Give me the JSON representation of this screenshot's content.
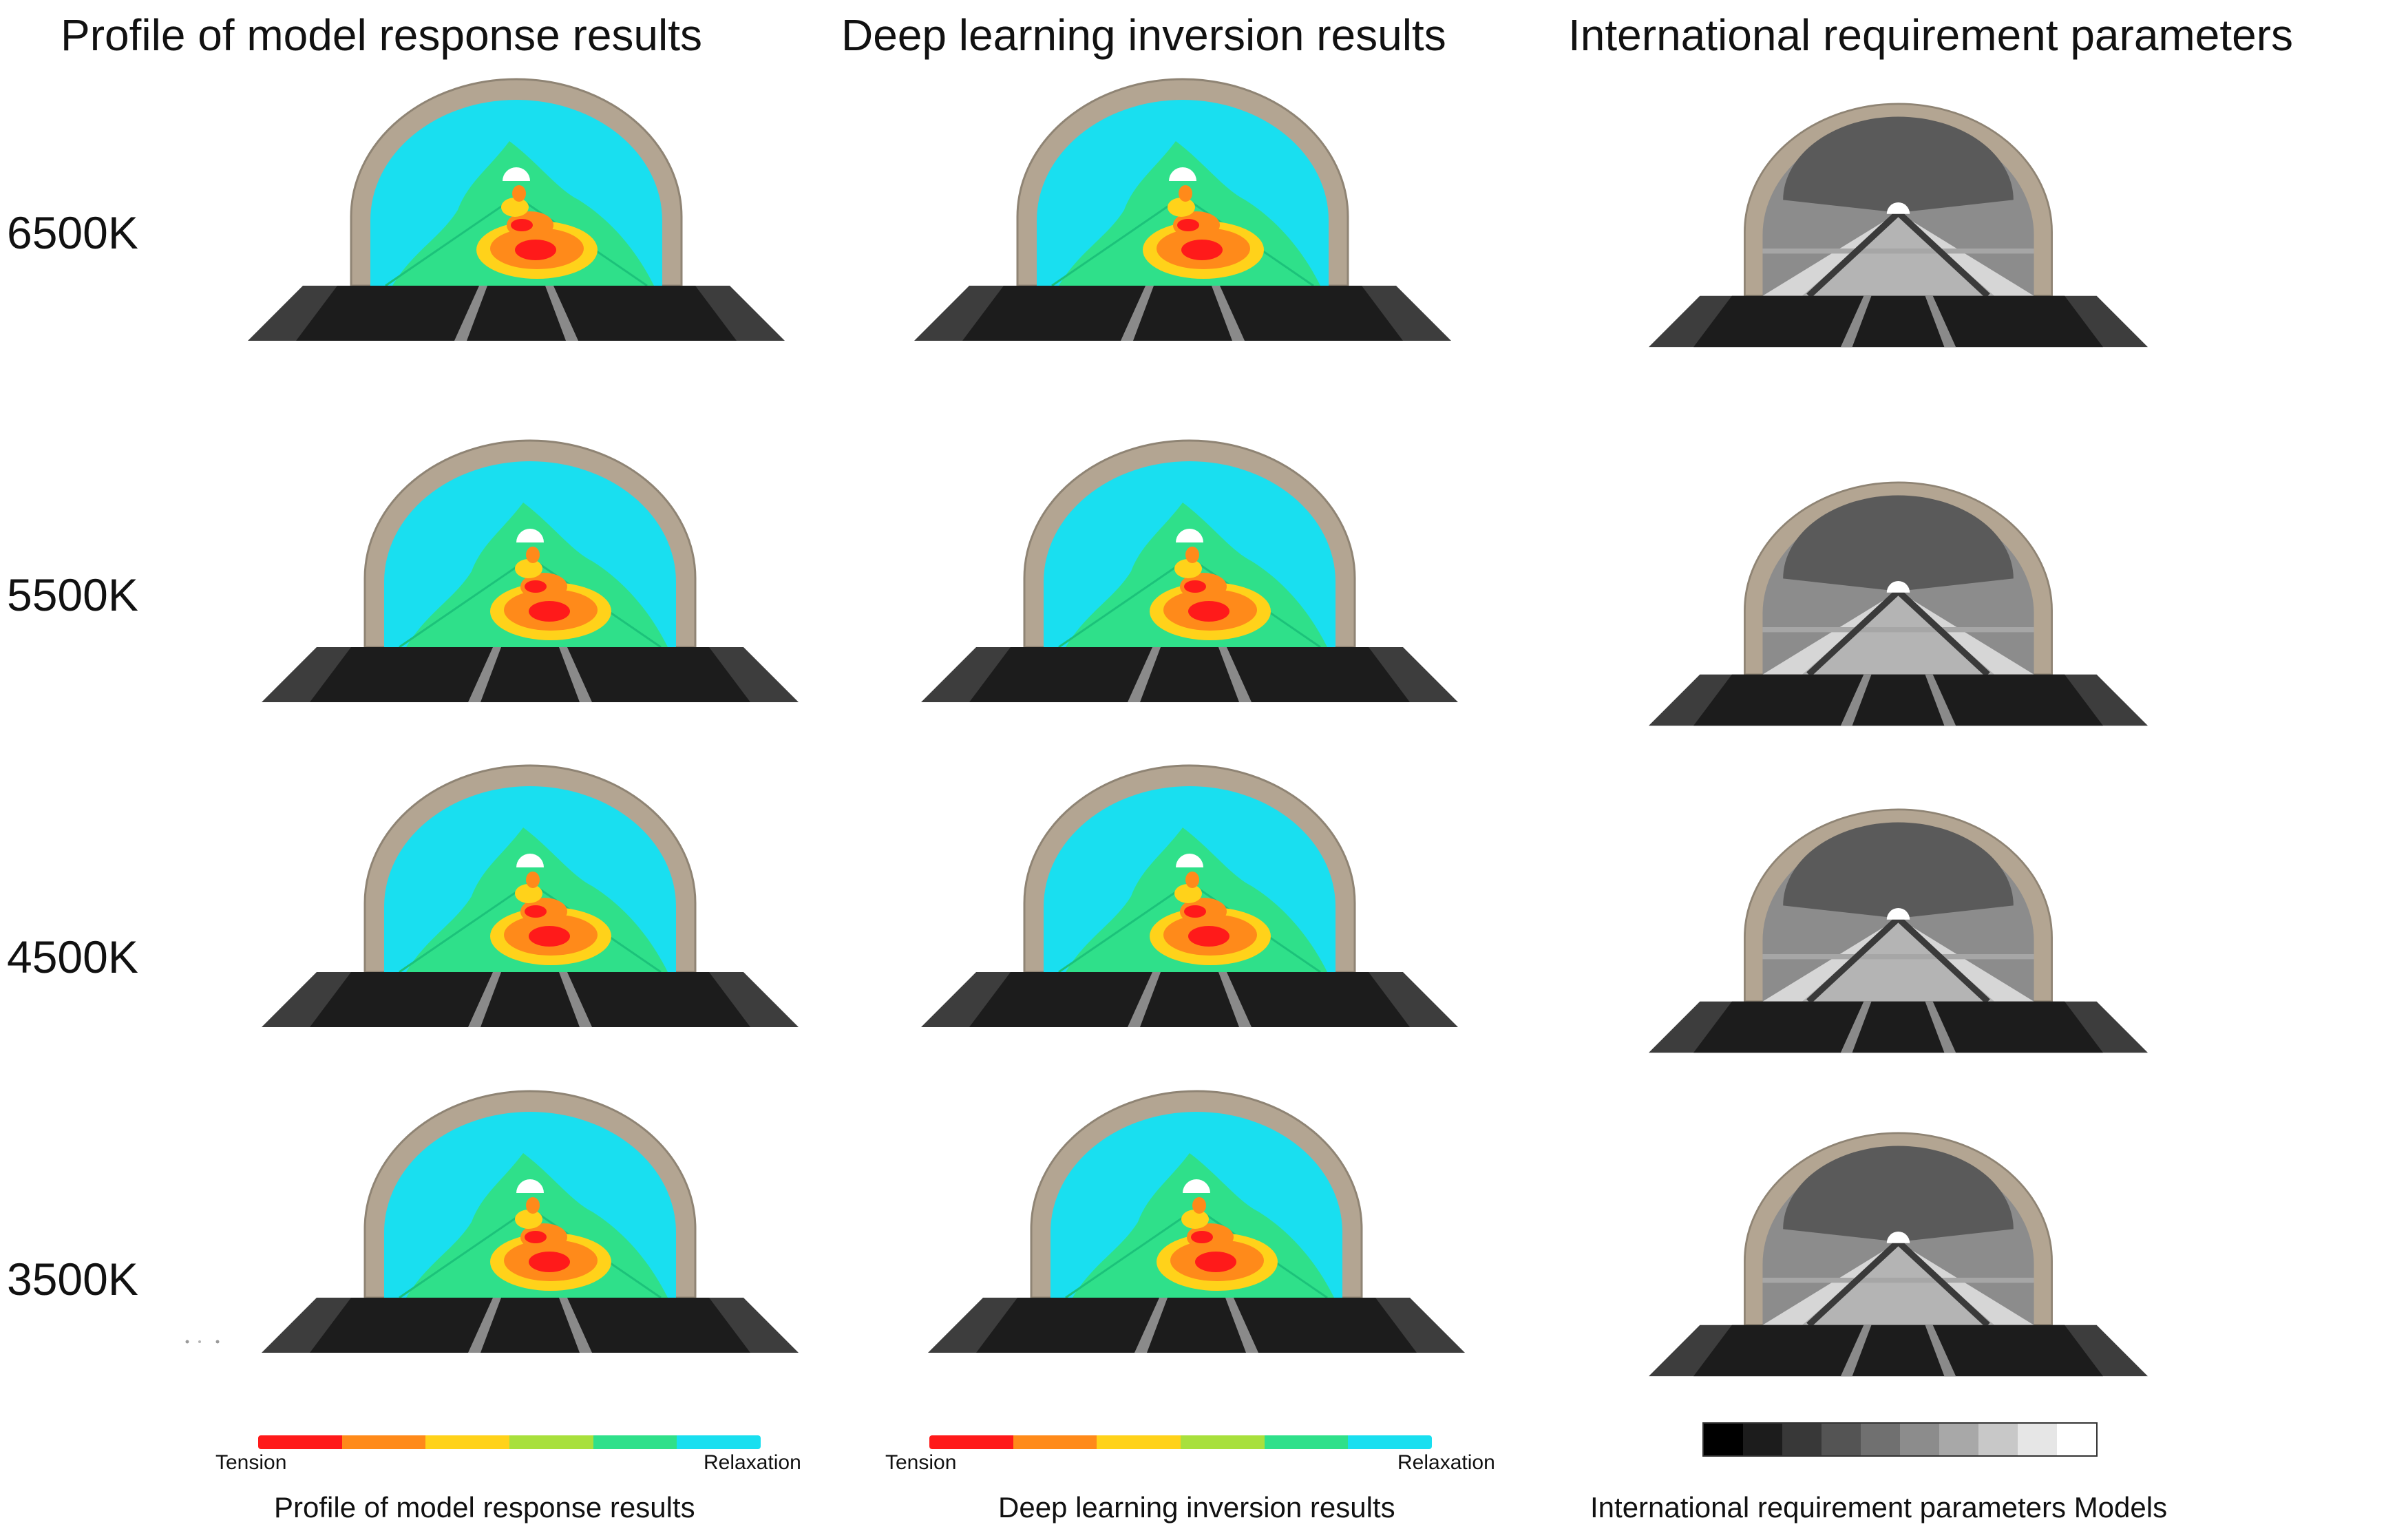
{
  "columns": [
    {
      "title": "Profile of model response results",
      "caption": "Profile of model response results",
      "style": "heat"
    },
    {
      "title": "Deep learning inversion results",
      "caption": "Deep learning inversion results",
      "style": "heat"
    },
    {
      "title": "International requirement parameters",
      "caption": "International requirement parameters Models",
      "style": "gray"
    }
  ],
  "rows": [
    {
      "label": "6500K"
    },
    {
      "label": "5500K"
    },
    {
      "label": "4500K"
    },
    {
      "label": "3500K"
    }
  ],
  "legend": {
    "left_end": "Tension",
    "right_end": "Relaxation",
    "heat_colors": [
      "#ff1a1a",
      "#ff8a1a",
      "#ffd21a",
      "#a8e03c",
      "#2fe08a",
      "#19dff0"
    ],
    "gray_levels": [
      "#000000",
      "#1c1c1c",
      "#383838",
      "#545454",
      "#707070",
      "#8c8c8c",
      "#a8a8a8",
      "#c8c8c8",
      "#e6e6e6",
      "#ffffff"
    ]
  },
  "colors": {
    "lining": "#b3a592",
    "lining_edge": "#8f8474",
    "road": "#1c1c1c",
    "road_side": "#3d3d3d",
    "lane_line": "#8a8a8a",
    "cavity_cyan": "#19dff0",
    "cavity_green": "#2fe08a"
  }
}
